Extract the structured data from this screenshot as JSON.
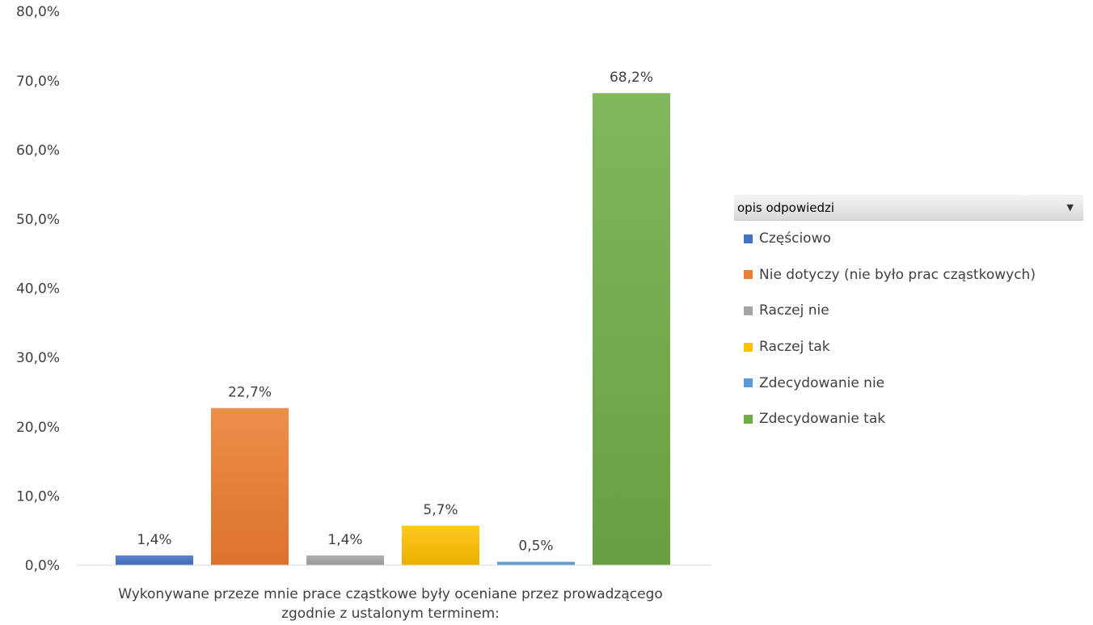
{
  "chart_data": {
    "type": "bar",
    "categories": [
      "Wykonywane przeze mnie prace cząstkowe były oceniane przez prowadzącego zgodnie z ustalonym terminem:"
    ],
    "category_label_lines": [
      "Wykonywane przeze mnie prace cząstkowe były oceniane przez prowadzącego",
      "zgodnie z ustalonym terminem:"
    ],
    "series": [
      {
        "name": "Częściowo",
        "values": [
          1.4
        ],
        "label": "1,4%",
        "color": "#4472c4"
      },
      {
        "name": "Nie dotyczy (nie było prac cząstkowych)",
        "values": [
          22.7
        ],
        "label": "22,7%",
        "color": "#ed7d31"
      },
      {
        "name": "Raczej nie",
        "values": [
          1.4
        ],
        "label": "1,4%",
        "color": "#a5a5a5"
      },
      {
        "name": "Raczej tak",
        "values": [
          5.7
        ],
        "label": "5,7%",
        "color": "#ffc000"
      },
      {
        "name": "Zdecydowanie nie",
        "values": [
          0.5
        ],
        "label": "0,5%",
        "color": "#5b9bd5"
      },
      {
        "name": "Zdecydowanie tak",
        "values": [
          68.2
        ],
        "label": "68,2%",
        "color": "#70ad47"
      }
    ],
    "ylim": [
      0,
      80
    ],
    "yticks": [
      0,
      10,
      20,
      30,
      40,
      50,
      60,
      70,
      80
    ],
    "ytick_labels": [
      "0,0%",
      "10,0%",
      "20,0%",
      "30,0%",
      "40,0%",
      "50,0%",
      "60,0%",
      "70,0%",
      "80,0%"
    ],
    "grid": false,
    "legend_position": "right"
  },
  "legend": {
    "header": "opis odpowiedzi",
    "dropdown_icon": "▼",
    "items": [
      {
        "label": "Częściowo",
        "color": "#4472c4"
      },
      {
        "label": "Nie dotyczy (nie było prac cząstkowych)",
        "color": "#ed7d31"
      },
      {
        "label": "Raczej nie",
        "color": "#a5a5a5"
      },
      {
        "label": "Raczej tak",
        "color": "#ffc000"
      },
      {
        "label": "Zdecydowanie nie",
        "color": "#5b9bd5"
      },
      {
        "label": "Zdecydowanie tak",
        "color": "#70ad47"
      }
    ]
  }
}
